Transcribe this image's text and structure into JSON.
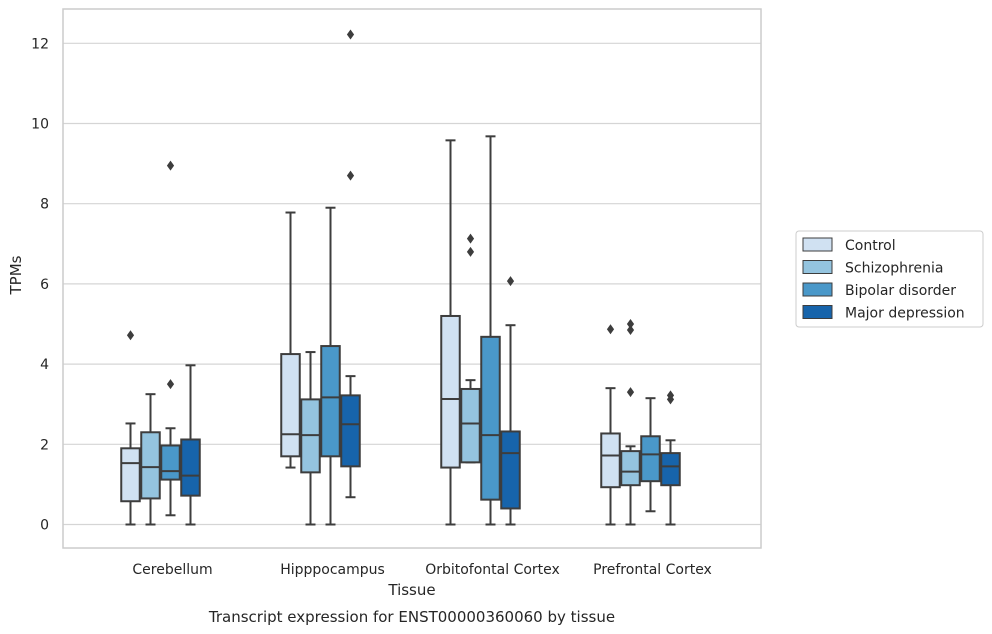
{
  "chart_data": {
    "type": "boxplot",
    "caption": "Transcript expression for ENST00000360060 by tissue",
    "xlabel": "Tissue",
    "ylabel": "TPMs",
    "ylim": [
      -0.6,
      12.85
    ],
    "yticks": [
      0,
      2,
      4,
      6,
      8,
      10,
      12
    ],
    "grid": "horizontal",
    "legend_placement": "right",
    "categories": [
      "Cerebellum",
      "Hipppocampus",
      "Orbitofontal Cortex",
      "Prefrontal Cortex"
    ],
    "series": [
      {
        "name": "Control",
        "color": "#d0e1f2",
        "boxes": [
          {
            "whislo": 0.0,
            "q1": 0.58,
            "med": 1.53,
            "q3": 1.9,
            "whishi": 2.52,
            "fliers": [
              4.72
            ]
          },
          {
            "whislo": 1.42,
            "q1": 1.7,
            "med": 2.25,
            "q3": 4.25,
            "whishi": 7.78,
            "fliers": []
          },
          {
            "whislo": 0.0,
            "q1": 1.42,
            "med": 3.13,
            "q3": 5.2,
            "whishi": 9.58,
            "fliers": []
          },
          {
            "whislo": 0.0,
            "q1": 0.93,
            "med": 1.72,
            "q3": 2.27,
            "whishi": 3.4,
            "fliers": [
              4.87
            ]
          }
        ]
      },
      {
        "name": "Schizophrenia",
        "color": "#94c4df",
        "boxes": [
          {
            "whislo": 0.0,
            "q1": 0.65,
            "med": 1.43,
            "q3": 2.3,
            "whishi": 3.25,
            "fliers": []
          },
          {
            "whislo": 0.0,
            "q1": 1.3,
            "med": 2.23,
            "q3": 3.12,
            "whishi": 4.3,
            "fliers": []
          },
          {
            "whislo": 1.55,
            "q1": 1.55,
            "med": 2.52,
            "q3": 3.38,
            "whishi": 3.6,
            "fliers": [
              6.8,
              7.13
            ]
          },
          {
            "whislo": 0.0,
            "q1": 0.98,
            "med": 1.32,
            "q3": 1.83,
            "whishi": 1.95,
            "fliers": [
              3.3,
              4.85,
              5.0
            ]
          }
        ]
      },
      {
        "name": "Bipolar disorder",
        "color": "#4a98c9",
        "boxes": [
          {
            "whislo": 0.23,
            "q1": 1.12,
            "med": 1.33,
            "q3": 1.97,
            "whishi": 2.4,
            "fliers": [
              3.5,
              8.95
            ]
          },
          {
            "whislo": 0.0,
            "q1": 1.7,
            "med": 3.17,
            "q3": 4.45,
            "whishi": 7.9,
            "fliers": []
          },
          {
            "whislo": 0.0,
            "q1": 0.62,
            "med": 2.23,
            "q3": 4.68,
            "whishi": 9.68,
            "fliers": []
          },
          {
            "whislo": 0.33,
            "q1": 1.08,
            "med": 1.75,
            "q3": 2.2,
            "whishi": 3.15,
            "fliers": []
          }
        ]
      },
      {
        "name": "Major depression",
        "color": "#1764ab",
        "boxes": [
          {
            "whislo": 0.0,
            "q1": 0.72,
            "med": 1.22,
            "q3": 2.12,
            "whishi": 3.97,
            "fliers": []
          },
          {
            "whislo": 0.68,
            "q1": 1.45,
            "med": 2.5,
            "q3": 3.22,
            "whishi": 3.7,
            "fliers": [
              8.7,
              12.22
            ]
          },
          {
            "whislo": 0.0,
            "q1": 0.4,
            "med": 1.78,
            "q3": 2.32,
            "whishi": 4.97,
            "fliers": [
              6.07
            ]
          },
          {
            "whislo": 0.0,
            "q1": 0.98,
            "med": 1.45,
            "q3": 1.78,
            "whishi": 2.1,
            "fliers": [
              3.12,
              3.22
            ]
          }
        ]
      }
    ]
  }
}
